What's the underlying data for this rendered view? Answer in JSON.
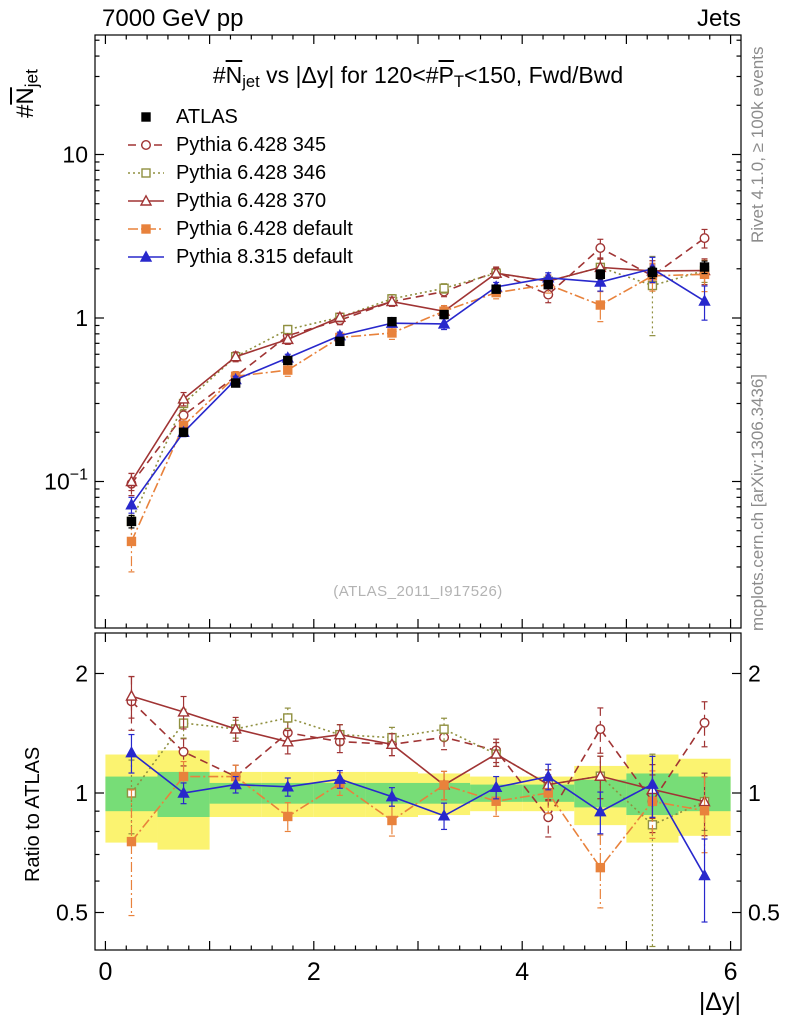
{
  "header": {
    "left": "7000 GeV pp",
    "right": "Jets"
  },
  "title": {
    "hash1": "#",
    "n": "N",
    "njet_sub": "jet",
    "mid": " vs |Δy| for 120<#",
    "p": "P",
    "pt_sub": "T",
    "tail": "<150, Fwd/Bwd"
  },
  "axis_titles": {
    "y_hash": "#",
    "y_sym": "N",
    "y_sub": "jet",
    "ratio": "Ratio to ATLAS",
    "x": "|Δy|"
  },
  "side_notes": {
    "rivet": "Rivet 4.1.0, ≥ 100k events",
    "mcplots": "mcplots.cern.ch [arXiv:1306.3436]"
  },
  "watermark": "(ATLAS_2011_I917526)",
  "chart_data": {
    "type": "line",
    "title": "#Njet vs |Δy| for 120<#PT<150, Fwd/Bwd",
    "xlabel": "|Δy|",
    "ylabel": "#Njet",
    "ratio_ylabel": "Ratio to ATLAS",
    "log_y": true,
    "grid": false,
    "legend_position": "top-left",
    "xlim": [
      -0.1,
      6.1
    ],
    "ylim_main": [
      0.0135,
      53.5
    ],
    "ylim_ratio": [
      0.402,
      2.53
    ],
    "x": [
      0.25,
      0.75,
      1.25,
      1.75,
      2.25,
      2.75,
      3.25,
      3.75,
      4.25,
      4.75,
      5.25,
      5.75
    ],
    "bin_halfwidth": 0.25,
    "xticks_labeled": [
      0,
      2,
      4,
      6
    ],
    "yticks_main": [
      {
        "v": 10,
        "l": "10"
      },
      {
        "v": 1,
        "l": "1"
      },
      {
        "v": 0.1,
        "l": "10",
        "exp": "−1"
      }
    ],
    "yticks_ratio": [
      {
        "v": 2,
        "l": "2"
      },
      {
        "v": 1,
        "l": "1"
      },
      {
        "v": 0.5,
        "l": "0.5"
      }
    ],
    "colors": {
      "band_yellow": "#fbf370",
      "band_green": "#77dd77",
      "dark_red": "#a03434",
      "olive": "#909040",
      "orange": "#e8823c",
      "blue": "#2828cc",
      "black": "#000000"
    },
    "band_yellow": [
      0.25,
      0.28,
      0.13,
      0.13,
      0.13,
      0.13,
      0.12,
      0.1,
      0.1,
      0.17,
      0.25,
      0.22
    ],
    "band_green": [
      0.1,
      0.13,
      0.06,
      0.06,
      0.06,
      0.06,
      0.06,
      0.05,
      0.05,
      0.08,
      0.12,
      0.1
    ],
    "series": [
      {
        "name": "ATLAS",
        "color": "#000000",
        "marker": "square",
        "filled": true,
        "line": "none",
        "values": [
          0.057,
          0.2,
          0.4,
          0.55,
          0.72,
          0.95,
          1.05,
          1.5,
          1.6,
          1.85,
          1.9,
          2.05
        ],
        "err": [
          0.005,
          0.01,
          0.015,
          0.02,
          0.03,
          0.04,
          0.05,
          0.07,
          0.09,
          0.12,
          0.15,
          0.18
        ]
      },
      {
        "name": "Pythia 6.428 345",
        "color": "#a03434",
        "marker": "circle",
        "filled": false,
        "line": "dash",
        "values": [
          0.097,
          0.254,
          0.44,
          0.78,
          0.97,
          1.26,
          1.45,
          1.92,
          1.39,
          2.68,
          1.81,
          3.08
        ],
        "err": [
          0.015,
          0.02,
          0.03,
          0.05,
          0.06,
          0.08,
          0.1,
          0.13,
          0.15,
          0.35,
          0.3,
          0.4
        ]
      },
      {
        "name": "Pythia 6.428 346",
        "color": "#909040",
        "marker": "square",
        "filled": false,
        "line": "dot",
        "values": [
          0.057,
          0.3,
          0.58,
          0.85,
          1.01,
          1.31,
          1.52,
          1.88,
          1.68,
          2.04,
          1.58,
          1.95
        ],
        "err": [
          0.012,
          0.025,
          0.03,
          0.05,
          0.06,
          0.08,
          0.1,
          0.13,
          0.15,
          0.25,
          0.8,
          0.3
        ]
      },
      {
        "name": "Pythia 6.428 370",
        "color": "#a03434",
        "marker": "triangle",
        "filled": false,
        "line": "solid",
        "values": [
          0.1,
          0.32,
          0.58,
          0.74,
          1.01,
          1.26,
          1.1,
          1.88,
          1.68,
          2.04,
          1.94,
          1.95
        ],
        "err": [
          0.012,
          0.03,
          0.04,
          0.05,
          0.06,
          0.08,
          0.09,
          0.13,
          0.15,
          0.25,
          0.3,
          0.35
        ]
      },
      {
        "name": "Pythia 6.428 default",
        "color": "#e8823c",
        "marker": "square",
        "filled": true,
        "line": "dashdot",
        "values": [
          0.043,
          0.22,
          0.44,
          0.48,
          0.76,
          0.81,
          1.1,
          1.43,
          1.6,
          1.2,
          1.81,
          1.85
        ],
        "err": [
          0.015,
          0.02,
          0.03,
          0.04,
          0.05,
          0.07,
          0.09,
          0.12,
          0.18,
          0.25,
          0.35,
          0.4
        ]
      },
      {
        "name": "Pythia 8.315 default",
        "color": "#2828cc",
        "marker": "triangle",
        "filled": true,
        "line": "solid",
        "values": [
          0.072,
          0.2,
          0.42,
          0.57,
          0.78,
          0.93,
          0.92,
          1.55,
          1.76,
          1.66,
          2.0,
          1.27
        ],
        "err": [
          0.008,
          0.012,
          0.02,
          0.03,
          0.04,
          0.05,
          0.07,
          0.1,
          0.13,
          0.2,
          0.35,
          0.3
        ]
      }
    ]
  }
}
